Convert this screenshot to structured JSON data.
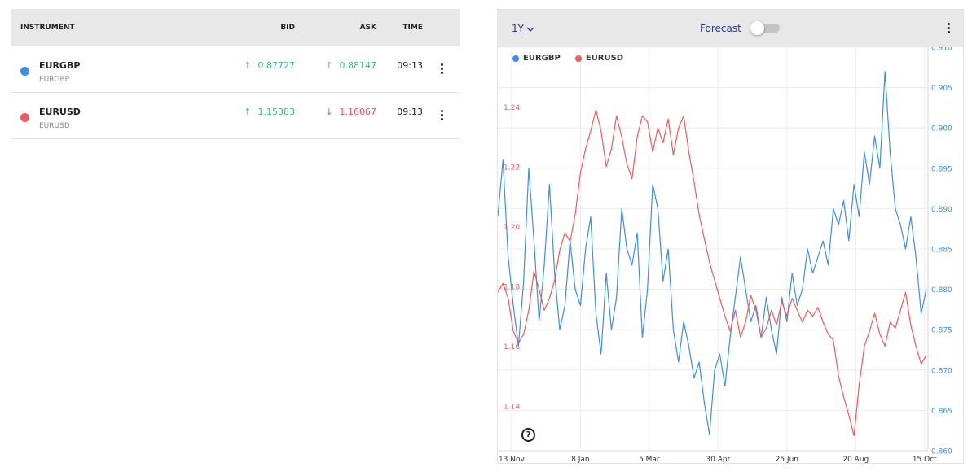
{
  "watchlist": {
    "headers": {
      "instrument": "INSTRUMENT",
      "bid": "BID",
      "ask": "ASK",
      "time": "TIME"
    },
    "rows": [
      {
        "symbol": "EURGBP",
        "sub": "EURGBP",
        "color": "#3d8fe6",
        "bid": "0.87727",
        "bid_dir": "up",
        "ask": "0.88147",
        "ask_dir": "up",
        "time": "09:13"
      },
      {
        "symbol": "EURUSD",
        "sub": "EURUSD",
        "color": "#ef5b5b",
        "bid": "1.15383",
        "bid_dir": "up",
        "ask": "1.16067",
        "ask_dir": "down",
        "time": "09:13"
      }
    ],
    "colors": {
      "up": "#3fb68b",
      "down": "#ef5350"
    }
  },
  "chart_header": {
    "range_label": "1Y",
    "forecast_label": "Forecast",
    "forecast_on": false
  },
  "icons": {
    "row_menu": "kebab-icon",
    "chart_menu": "kebab-icon",
    "help": "help-icon",
    "range_caret": "chevron-down-icon"
  },
  "chart_data": {
    "type": "line",
    "title": "",
    "legend_position": "top-left",
    "grid": true,
    "x_ticks": [
      "13 Nov",
      "8 Jan",
      "5 Mar",
      "30 Apr",
      "25 Jun",
      "20 Aug",
      "15 Oct"
    ],
    "x_range": [
      0,
      250
    ],
    "x_tick_positions": [
      8,
      48,
      88,
      128,
      168,
      208,
      248
    ],
    "y_left": {
      "ticks": [
        "1.14",
        "1.16",
        "1.18",
        "1.20",
        "1.22",
        "1.24"
      ],
      "min": 1.125,
      "max": 1.26,
      "color": "#ef5b5b"
    },
    "y_right": {
      "ticks": [
        "0.865",
        "0.870",
        "0.875",
        "0.880",
        "0.885",
        "0.890",
        "0.895",
        "0.900",
        "0.905",
        "0.910"
      ],
      "extra_ticks": [
        "0.860"
      ],
      "min": 0.86,
      "max": 0.91,
      "color": "#3d8fe6"
    },
    "series": [
      {
        "name": "EURGBP",
        "axis": "right",
        "color": "#3d8fe6",
        "points": [
          [
            0,
            0.889
          ],
          [
            3,
            0.896
          ],
          [
            6,
            0.884
          ],
          [
            9,
            0.878
          ],
          [
            12,
            0.873
          ],
          [
            15,
            0.881
          ],
          [
            18,
            0.895
          ],
          [
            21,
            0.886
          ],
          [
            24,
            0.876
          ],
          [
            27,
            0.883
          ],
          [
            30,
            0.893
          ],
          [
            33,
            0.882
          ],
          [
            36,
            0.875
          ],
          [
            39,
            0.878
          ],
          [
            42,
            0.886
          ],
          [
            45,
            0.88
          ],
          [
            48,
            0.878
          ],
          [
            51,
            0.885
          ],
          [
            54,
            0.889
          ],
          [
            57,
            0.877
          ],
          [
            60,
            0.872
          ],
          [
            63,
            0.882
          ],
          [
            66,
            0.875
          ],
          [
            69,
            0.879
          ],
          [
            72,
            0.89
          ],
          [
            75,
            0.885
          ],
          [
            78,
            0.883
          ],
          [
            81,
            0.887
          ],
          [
            84,
            0.874
          ],
          [
            87,
            0.88
          ],
          [
            90,
            0.893
          ],
          [
            93,
            0.89
          ],
          [
            96,
            0.881
          ],
          [
            99,
            0.885
          ],
          [
            102,
            0.875
          ],
          [
            105,
            0.871
          ],
          [
            108,
            0.876
          ],
          [
            111,
            0.873
          ],
          [
            114,
            0.869
          ],
          [
            117,
            0.871
          ],
          [
            120,
            0.866
          ],
          [
            123,
            0.862
          ],
          [
            126,
            0.87
          ],
          [
            129,
            0.872
          ],
          [
            132,
            0.868
          ],
          [
            135,
            0.874
          ],
          [
            138,
            0.879
          ],
          [
            141,
            0.884
          ],
          [
            144,
            0.88
          ],
          [
            147,
            0.876
          ],
          [
            150,
            0.878
          ],
          [
            153,
            0.874
          ],
          [
            156,
            0.879
          ],
          [
            159,
            0.875
          ],
          [
            162,
            0.872
          ],
          [
            165,
            0.879
          ],
          [
            168,
            0.876
          ],
          [
            171,
            0.882
          ],
          [
            174,
            0.878
          ],
          [
            177,
            0.88
          ],
          [
            180,
            0.885
          ],
          [
            183,
            0.882
          ],
          [
            186,
            0.884
          ],
          [
            189,
            0.886
          ],
          [
            192,
            0.883
          ],
          [
            195,
            0.89
          ],
          [
            198,
            0.888
          ],
          [
            201,
            0.891
          ],
          [
            204,
            0.886
          ],
          [
            207,
            0.893
          ],
          [
            210,
            0.889
          ],
          [
            213,
            0.897
          ],
          [
            216,
            0.893
          ],
          [
            219,
            0.899
          ],
          [
            222,
            0.895
          ],
          [
            225,
            0.907
          ],
          [
            228,
            0.897
          ],
          [
            231,
            0.89
          ],
          [
            234,
            0.888
          ],
          [
            237,
            0.885
          ],
          [
            240,
            0.889
          ],
          [
            243,
            0.884
          ],
          [
            246,
            0.877
          ],
          [
            249,
            0.88
          ]
        ]
      },
      {
        "name": "EURUSD",
        "axis": "left",
        "color": "#ef5b5b",
        "points": [
          [
            0,
            1.178
          ],
          [
            3,
            1.181
          ],
          [
            6,
            1.176
          ],
          [
            9,
            1.165
          ],
          [
            12,
            1.161
          ],
          [
            15,
            1.164
          ],
          [
            18,
            1.172
          ],
          [
            21,
            1.185
          ],
          [
            24,
            1.179
          ],
          [
            27,
            1.172
          ],
          [
            30,
            1.176
          ],
          [
            33,
            1.182
          ],
          [
            36,
            1.192
          ],
          [
            39,
            1.198
          ],
          [
            42,
            1.195
          ],
          [
            45,
            1.204
          ],
          [
            48,
            1.218
          ],
          [
            51,
            1.226
          ],
          [
            54,
            1.232
          ],
          [
            57,
            1.239
          ],
          [
            60,
            1.232
          ],
          [
            63,
            1.22
          ],
          [
            66,
            1.226
          ],
          [
            69,
            1.237
          ],
          [
            72,
            1.23
          ],
          [
            75,
            1.221
          ],
          [
            78,
            1.216
          ],
          [
            81,
            1.23
          ],
          [
            84,
            1.237
          ],
          [
            87,
            1.235
          ],
          [
            90,
            1.225
          ],
          [
            93,
            1.233
          ],
          [
            96,
            1.228
          ],
          [
            99,
            1.236
          ],
          [
            102,
            1.224
          ],
          [
            105,
            1.233
          ],
          [
            108,
            1.237
          ],
          [
            111,
            1.225
          ],
          [
            114,
            1.215
          ],
          [
            117,
            1.204
          ],
          [
            120,
            1.196
          ],
          [
            123,
            1.188
          ],
          [
            126,
            1.182
          ],
          [
            129,
            1.176
          ],
          [
            132,
            1.17
          ],
          [
            135,
            1.165
          ],
          [
            138,
            1.172
          ],
          [
            141,
            1.163
          ],
          [
            144,
            1.168
          ],
          [
            147,
            1.177
          ],
          [
            150,
            1.172
          ],
          [
            153,
            1.163
          ],
          [
            156,
            1.166
          ],
          [
            159,
            1.172
          ],
          [
            162,
            1.167
          ],
          [
            165,
            1.175
          ],
          [
            168,
            1.17
          ],
          [
            171,
            1.176
          ],
          [
            174,
            1.172
          ],
          [
            177,
            1.168
          ],
          [
            180,
            1.172
          ],
          [
            183,
            1.17
          ],
          [
            186,
            1.173
          ],
          [
            189,
            1.168
          ],
          [
            192,
            1.164
          ],
          [
            195,
            1.162
          ],
          [
            198,
            1.15
          ],
          [
            201,
            1.143
          ],
          [
            204,
            1.137
          ],
          [
            207,
            1.13
          ],
          [
            210,
            1.147
          ],
          [
            213,
            1.16
          ],
          [
            216,
            1.165
          ],
          [
            219,
            1.171
          ],
          [
            222,
            1.164
          ],
          [
            225,
            1.16
          ],
          [
            228,
            1.168
          ],
          [
            231,
            1.166
          ],
          [
            234,
            1.172
          ],
          [
            237,
            1.178
          ],
          [
            240,
            1.167
          ],
          [
            243,
            1.16
          ],
          [
            246,
            1.154
          ],
          [
            249,
            1.157
          ]
        ]
      }
    ]
  }
}
